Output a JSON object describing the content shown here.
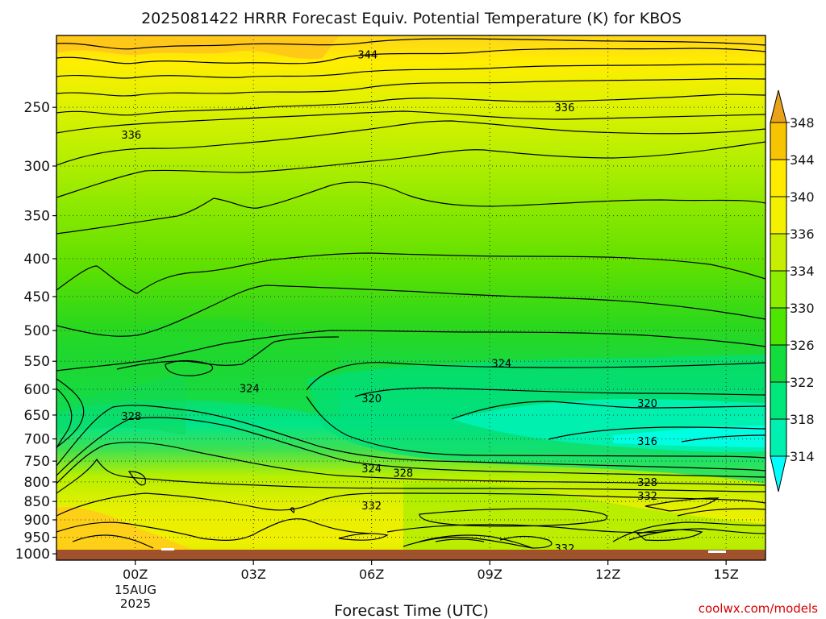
{
  "chart_data": {
    "type": "heatmap",
    "title": "2025081422 HRRR Forecast Equiv. Potential Temperature (K) for KBOS",
    "xlabel": "Forecast Time (UTC)",
    "ylabel": "",
    "x_ticks": [
      {
        "hour": 0,
        "label": "00Z"
      },
      {
        "hour": 3,
        "label": "03Z"
      },
      {
        "hour": 6,
        "label": "06Z"
      },
      {
        "hour": 9,
        "label": "09Z"
      },
      {
        "hour": 12,
        "label": "12Z"
      },
      {
        "hour": 15,
        "label": "15Z"
      }
    ],
    "x_date_label": [
      "15AUG",
      "2025"
    ],
    "xlim_hours": [
      -2,
      16
    ],
    "y_ticks": [
      250,
      300,
      350,
      400,
      450,
      500,
      550,
      600,
      650,
      700,
      750,
      800,
      850,
      900,
      950,
      1000
    ],
    "ylim_hpa": [
      1020,
      200
    ],
    "y_scale": "log-pressure",
    "grid": "dotted",
    "colorbar": {
      "levels": [
        314,
        318,
        322,
        326,
        330,
        334,
        336,
        340,
        344,
        348
      ],
      "colors": [
        "#00ffff",
        "#00f0b0",
        "#00e87a",
        "#13dd3e",
        "#4ee600",
        "#8ced00",
        "#c7ee00",
        "#f3f000",
        "#ffea00",
        "#f6c400",
        "#eaa21a"
      ],
      "extend": "both"
    },
    "ground_color": "#a0522d",
    "contour_labels": [
      {
        "value": "344",
        "hour": 5.9,
        "hpa": 212
      },
      {
        "value": "336",
        "hour": 10.9,
        "hpa": 250
      },
      {
        "value": "336",
        "hour": -0.1,
        "hpa": 272
      },
      {
        "value": "324",
        "hour": 9.3,
        "hpa": 553
      },
      {
        "value": "324",
        "hour": 2.9,
        "hpa": 598
      },
      {
        "value": "320",
        "hour": 6.0,
        "hpa": 617
      },
      {
        "value": "320",
        "hour": 13.0,
        "hpa": 626
      },
      {
        "value": "328",
        "hour": -0.1,
        "hpa": 652
      },
      {
        "value": "316",
        "hour": 13.0,
        "hpa": 704
      },
      {
        "value": "324",
        "hour": 6.0,
        "hpa": 767
      },
      {
        "value": "328",
        "hour": 6.8,
        "hpa": 777
      },
      {
        "value": "328",
        "hour": 13.0,
        "hpa": 800
      },
      {
        "value": "332",
        "hour": 13.0,
        "hpa": 835
      },
      {
        "value": "332",
        "hour": 6.0,
        "hpa": 860
      },
      {
        "value": "332",
        "hour": 10.9,
        "hpa": 982
      }
    ]
  },
  "credit": "coolwx.com/models"
}
